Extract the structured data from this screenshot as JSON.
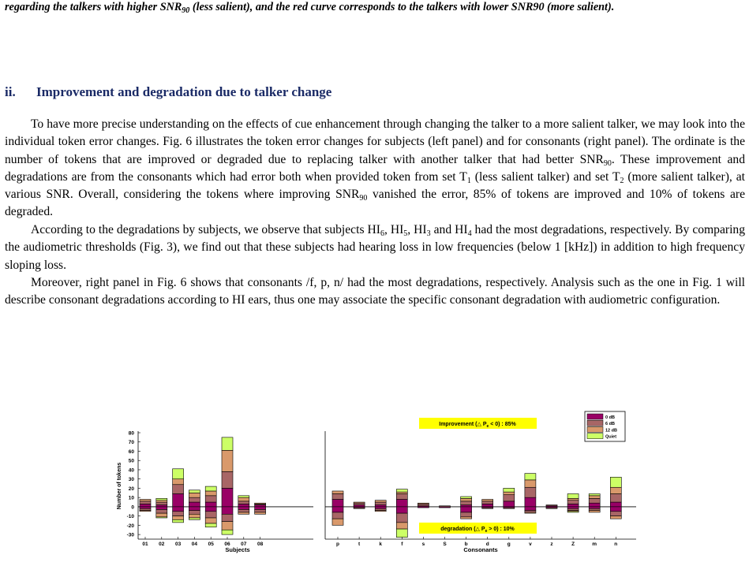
{
  "caption": {
    "part1": "regarding the talkers with higher SNR",
    "sub1": "90",
    "part2": " (less salient), and the red curve corresponds to the talkers with lower SNR90 (more salient)."
  },
  "section": {
    "number": "ii.",
    "title": "Improvement and degradation due to talker change"
  },
  "paragraphs": {
    "p1": {
      "a": "To have more precise understanding on the effects of cue enhancement through changing the talker to a more salient talker, we may look into the individual token error changes. Fig. 6 illustrates the token error changes for subjects (left panel) and for consonants (right panel). The ordinate is the number of tokens that are improved or degraded due to replacing talker with another talker that had better SNR",
      "s1": "90",
      "b": ". These improvement and degradations are from the consonants which had error both when provided token from set T",
      "s2": "1",
      "c": " (less salient talker) and set T",
      "s3": "2",
      "d": " (more salient talker), at various SNR. Overall, considering the tokens where improving SNR",
      "s4": "90",
      "e": " vanished the error, 85% of tokens are improved and 10% of tokens are degraded."
    },
    "p2": {
      "a": "According to the degradations by subjects, we observe that subjects HI",
      "s1": "6",
      "b": ", HI",
      "s2": "5",
      "c": ", HI",
      "s3": "3",
      "d": " and HI",
      "s4": "4",
      "e": " had the most degradations, respectively. By comparing the audiometric thresholds (Fig. 3), we find out that these subjects had hearing loss in low frequencies (below 1 [kHz]) in addition to high frequency sloping loss."
    },
    "p3": {
      "text": "Moreover, right panel in Fig. 6 shows that consonants /f, p, n/ had the most degradations, respectively. Analysis such as the one in Fig. 1 will describe consonant degradations according to HI ears, thus one may associate the specific consonant degradation with audiometric configuration."
    }
  },
  "chart_data": [
    {
      "type": "bar",
      "stacked": true,
      "xlabel": "Subjects",
      "ylabel": "Number of tokens",
      "ylim": [
        -35,
        80
      ],
      "yticks": [
        "-30",
        "-20",
        "-10",
        "0",
        "10",
        "20",
        "30",
        "40",
        "50",
        "60",
        "70",
        "80"
      ],
      "categories": [
        "01",
        "02",
        "03",
        "04",
        "05",
        "06",
        "07",
        "08"
      ],
      "series": [
        {
          "name": "0 dB",
          "color": "#990066",
          "pos": [
            3,
            2,
            14,
            5,
            5,
            20,
            3,
            2
          ],
          "neg": [
            -2,
            -3,
            -5,
            -4,
            -5,
            -8,
            -3,
            -3
          ]
        },
        {
          "name": "6 dB",
          "color": "#a86666",
          "pos": [
            3,
            3,
            10,
            5,
            7,
            18,
            3,
            1
          ],
          "neg": [
            -2,
            -4,
            -5,
            -4,
            -7,
            -8,
            -3,
            -3
          ]
        },
        {
          "name": "12 dB",
          "color": "#d9996b",
          "pos": [
            2,
            2,
            6,
            5,
            5,
            23,
            4,
            1
          ],
          "neg": [
            -1,
            -4,
            -4,
            -4,
            -6,
            -9,
            -2,
            -2
          ]
        },
        {
          "name": "Quiet",
          "color": "#ccff66",
          "pos": [
            0,
            2,
            11,
            3,
            5,
            14,
            2,
            0
          ],
          "neg": [
            0,
            -1,
            -3,
            -2,
            -4,
            -5,
            0,
            0
          ]
        }
      ]
    },
    {
      "type": "bar",
      "stacked": true,
      "xlabel": "Consonants",
      "ylim": [
        -35,
        80
      ],
      "categories": [
        "p",
        "t",
        "k",
        "f",
        "s",
        "S",
        "b",
        "d",
        "g",
        "v",
        "z",
        "Z",
        "m",
        "n"
      ],
      "series": [
        {
          "name": "0 dB",
          "color": "#990066",
          "pos": [
            8,
            2,
            2,
            8,
            1,
            0,
            2,
            3,
            6,
            10,
            1,
            3,
            4,
            5
          ],
          "neg": [
            -6,
            -1,
            -2,
            -7,
            -1,
            -1,
            -6,
            -1,
            -1,
            -4,
            -1,
            -2,
            -2,
            -5
          ]
        },
        {
          "name": "6 dB",
          "color": "#a86666",
          "pos": [
            6,
            2,
            3,
            6,
            2,
            1,
            4,
            3,
            7,
            11,
            1,
            4,
            5,
            9
          ],
          "neg": [
            -7,
            -1,
            -2,
            -10,
            0,
            0,
            -5,
            -1,
            -1,
            -2,
            -1,
            -2,
            -2,
            -5
          ]
        },
        {
          "name": "12 dB",
          "color": "#d9996b",
          "pos": [
            3,
            1,
            2,
            2,
            1,
            0,
            3,
            2,
            3,
            8,
            0,
            2,
            3,
            7
          ],
          "neg": [
            -7,
            0,
            -1,
            -7,
            0,
            0,
            -2,
            0,
            0,
            -1,
            0,
            -1,
            -2,
            -3
          ]
        },
        {
          "name": "Quiet",
          "color": "#ccff66",
          "pos": [
            0,
            0,
            0,
            3,
            0,
            0,
            2,
            0,
            4,
            7,
            0,
            5,
            2,
            11
          ],
          "neg": [
            0,
            0,
            0,
            -9,
            0,
            0,
            0,
            0,
            0,
            0,
            0,
            -1,
            0,
            0
          ]
        }
      ],
      "legend": {
        "placement": "top-right",
        "labels": [
          "0 dB",
          "6 dB",
          "12 dB",
          "Quiet"
        ]
      },
      "annotations": {
        "improvement": {
          "pre": "Improvement (",
          "delta": "△ P",
          "sub": "e",
          "post": " < 0) : 85%"
        },
        "degradation": {
          "pre": "degradation (",
          "delta": "△ P",
          "sub": "e",
          "post": " > 0) : 10%"
        }
      }
    }
  ]
}
